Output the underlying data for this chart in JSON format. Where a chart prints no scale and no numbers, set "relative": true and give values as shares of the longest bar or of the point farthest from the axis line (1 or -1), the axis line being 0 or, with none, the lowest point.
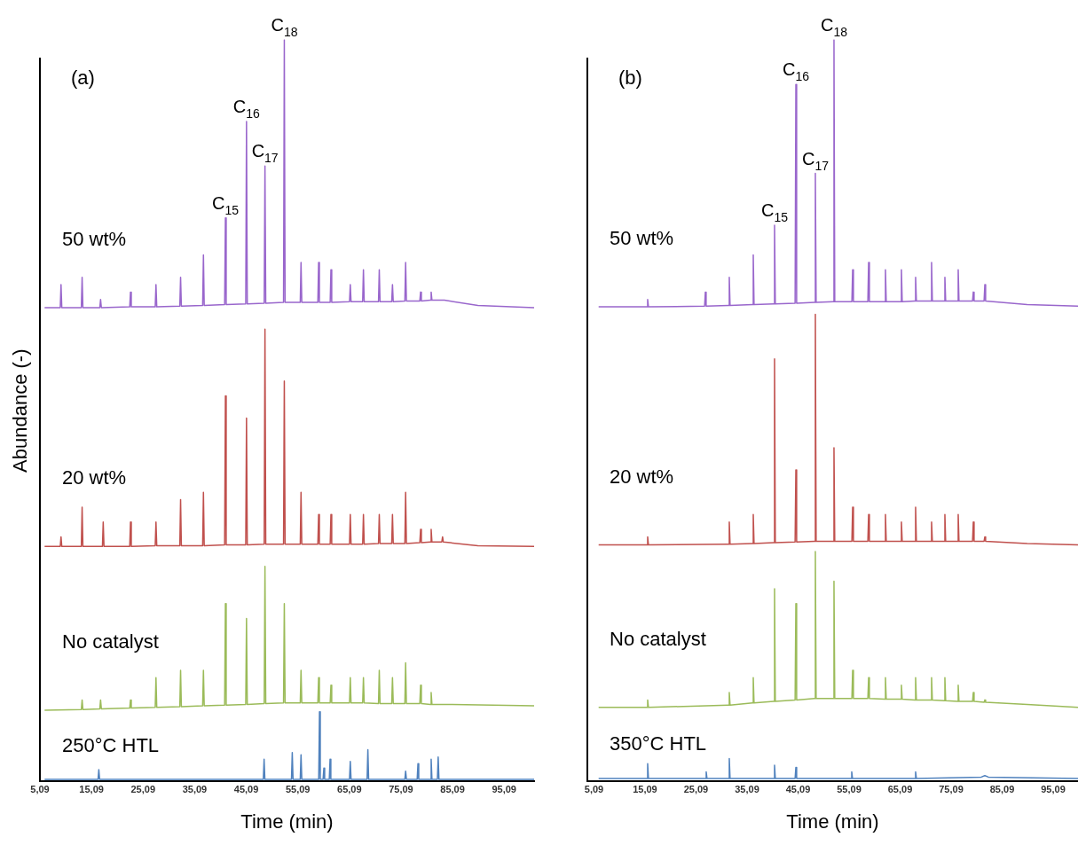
{
  "chart_data": [
    {
      "type": "line",
      "title": "(a)",
      "xlabel": "Time (min)",
      "ylabel": "Abundance (-)",
      "relative": true,
      "legend": false,
      "grid": false,
      "marker": "none",
      "tick_labels": "x",
      "xlim": [
        5.09,
        100.9
      ],
      "xticks": [
        {
          "value": 5.09,
          "label": "5,09"
        },
        {
          "value": 15.09,
          "label": "15,09"
        },
        {
          "value": 25.09,
          "label": "25,09"
        },
        {
          "value": 35.09,
          "label": "35,09"
        },
        {
          "value": 45.09,
          "label": "45,09"
        },
        {
          "value": 55.09,
          "label": "55,09"
        },
        {
          "value": 65.09,
          "label": "65,09"
        },
        {
          "value": 75.09,
          "label": "75,09"
        },
        {
          "value": 85.09,
          "label": "85,09"
        },
        {
          "value": 95.09,
          "label": "95,09"
        }
      ],
      "series": [
        {
          "name": "50 wt%",
          "color": "#9966cc",
          "x": [
            6,
            9.03,
            9.18,
            9.33,
            13.12,
            13.27,
            13.42,
            16.7,
            16.85,
            17.0,
            22.5,
            22.65,
            22.8,
            27.44,
            27.59,
            27.74,
            32.21,
            32.36,
            32.51,
            36.64,
            36.79,
            36.94,
            40.9,
            41.05,
            41.2,
            44.99,
            45.14,
            45.29,
            48.57,
            48.72,
            48.87,
            52.32,
            52.47,
            52.62,
            55.56,
            55.71,
            55.86,
            58.97,
            59.12,
            59.27,
            61.36,
            61.51,
            61.66,
            65.11,
            65.26,
            65.41,
            67.66,
            67.81,
            67.96,
            70.73,
            70.88,
            71.03,
            73.29,
            73.44,
            73.59,
            75.84,
            75.99,
            76.14,
            78.74,
            78.89,
            79.04,
            80.79,
            80.94,
            81.09,
            83.5,
            90,
            100.9
          ],
          "values": [
            0.639,
            0.639,
            0.67,
            0.639,
            0.639,
            0.68,
            0.639,
            0.639,
            0.65,
            0.639,
            0.64,
            0.66,
            0.64,
            0.64,
            0.67,
            0.64,
            0.641,
            0.68,
            0.641,
            0.642,
            0.71,
            0.642,
            0.643,
            0.76,
            0.643,
            0.644,
            0.89,
            0.644,
            0.645,
            0.83,
            0.645,
            0.646,
            1,
            0.646,
            0.646,
            0.7,
            0.646,
            0.646,
            0.7,
            0.646,
            0.646,
            0.69,
            0.646,
            0.647,
            0.67,
            0.647,
            0.647,
            0.69,
            0.647,
            0.647,
            0.69,
            0.647,
            0.647,
            0.67,
            0.647,
            0.648,
            0.7,
            0.648,
            0.648,
            0.66,
            0.648,
            0.649,
            0.66,
            0.649,
            0.649,
            0.642,
            0.639
          ]
        },
        {
          "name": "20 wt%",
          "color": "#c0504d",
          "x": [
            6,
            9.03,
            9.18,
            9.33,
            13.12,
            13.27,
            13.42,
            17.21,
            17.36,
            17.51,
            22.5,
            22.65,
            22.8,
            27.44,
            27.59,
            27.74,
            32.21,
            32.36,
            32.51,
            36.64,
            36.79,
            36.94,
            40.9,
            41.05,
            41.2,
            44.99,
            45.14,
            45.29,
            48.57,
            48.72,
            48.87,
            52.32,
            52.47,
            52.62,
            55.56,
            55.71,
            55.86,
            58.97,
            59.12,
            59.27,
            61.36,
            61.51,
            61.66,
            65.11,
            65.26,
            65.41,
            67.66,
            67.81,
            67.96,
            70.73,
            70.88,
            71.03,
            73.29,
            73.44,
            73.59,
            75.84,
            75.99,
            76.14,
            78.74,
            78.89,
            79.04,
            80.79,
            80.94,
            81.09,
            83.0,
            83.15,
            83.3,
            90,
            100.9
          ],
          "values": [
            0.317,
            0.317,
            0.33,
            0.317,
            0.317,
            0.37,
            0.317,
            0.317,
            0.35,
            0.317,
            0.317,
            0.35,
            0.317,
            0.318,
            0.35,
            0.318,
            0.318,
            0.38,
            0.318,
            0.318,
            0.39,
            0.318,
            0.319,
            0.52,
            0.319,
            0.319,
            0.49,
            0.319,
            0.32,
            0.61,
            0.32,
            0.32,
            0.54,
            0.32,
            0.32,
            0.39,
            0.32,
            0.32,
            0.36,
            0.32,
            0.32,
            0.36,
            0.32,
            0.32,
            0.36,
            0.32,
            0.32,
            0.36,
            0.32,
            0.321,
            0.36,
            0.321,
            0.321,
            0.36,
            0.321,
            0.321,
            0.39,
            0.321,
            0.322,
            0.34,
            0.322,
            0.323,
            0.34,
            0.323,
            0.323,
            0.33,
            0.323,
            0.318,
            0.317
          ]
        },
        {
          "name": "No catalyst",
          "color": "#9bbb59",
          "x": [
            6,
            13.12,
            13.27,
            13.42,
            16.7,
            16.85,
            17.0,
            22.5,
            22.65,
            22.8,
            27.44,
            27.59,
            27.74,
            32.21,
            32.36,
            32.51,
            36.64,
            36.79,
            36.94,
            40.9,
            41.05,
            41.2,
            44.99,
            45.14,
            45.29,
            48.57,
            48.72,
            48.87,
            52.32,
            52.47,
            52.62,
            55.56,
            55.71,
            55.86,
            58.97,
            59.12,
            59.27,
            61.36,
            61.51,
            61.66,
            65.11,
            65.26,
            65.41,
            67.66,
            67.81,
            67.96,
            70.73,
            70.88,
            71.03,
            73.29,
            73.44,
            73.59,
            75.84,
            75.99,
            76.14,
            78.74,
            78.89,
            79.04,
            80.79,
            80.94,
            81.09,
            85,
            100.9
          ],
          "values": [
            0.096,
            0.097,
            0.11,
            0.097,
            0.098,
            0.11,
            0.098,
            0.099,
            0.11,
            0.099,
            0.1,
            0.14,
            0.1,
            0.101,
            0.15,
            0.101,
            0.102,
            0.15,
            0.102,
            0.103,
            0.24,
            0.103,
            0.104,
            0.22,
            0.104,
            0.105,
            0.29,
            0.105,
            0.106,
            0.24,
            0.106,
            0.106,
            0.15,
            0.106,
            0.106,
            0.14,
            0.106,
            0.106,
            0.13,
            0.106,
            0.106,
            0.14,
            0.106,
            0.106,
            0.14,
            0.106,
            0.105,
            0.15,
            0.105,
            0.105,
            0.14,
            0.105,
            0.105,
            0.16,
            0.105,
            0.105,
            0.13,
            0.105,
            0.104,
            0.12,
            0.104,
            0.104,
            0.102
          ]
        },
        {
          "name": "250°C HTL",
          "color": "#4f81bd",
          "x": [
            6,
            16.36,
            16.51,
            16.66,
            48.4,
            48.55,
            48.7,
            53.86,
            54.01,
            54.16,
            55.56,
            55.71,
            55.86,
            59.14,
            59.29,
            59.44,
            59.99,
            60.14,
            60.29,
            61.19,
            61.34,
            61.49,
            65.11,
            65.26,
            65.41,
            68.52,
            68.67,
            68.82,
            75.84,
            75.99,
            76.14,
            78.23,
            78.38,
            78.53,
            80.79,
            80.94,
            81.09,
            82.15,
            82.3,
            82.45,
            100.9
          ],
          "values": [
            0.003,
            0.003,
            0.016,
            0.003,
            0.003,
            0.03,
            0.003,
            0.003,
            0.039,
            0.003,
            0.003,
            0.036,
            0.003,
            0.003,
            0.094,
            0.003,
            0.003,
            0.018,
            0.003,
            0.003,
            0.03,
            0.003,
            0.003,
            0.027,
            0.003,
            0.003,
            0.043,
            0.003,
            0.003,
            0.014,
            0.003,
            0.003,
            0.024,
            0.003,
            0.003,
            0.03,
            0.003,
            0.003,
            0.033,
            0.003,
            0.003
          ]
        }
      ],
      "annotations": [
        {
          "text": "C$_{15}$",
          "x": 41.05,
          "y": 0.76
        },
        {
          "text": "C$_{16}$",
          "x": 45.14,
          "y": 0.89
        },
        {
          "text": "C$_{17}$",
          "x": 48.72,
          "y": 0.83
        },
        {
          "text": "C$_{18}$",
          "x": 52.47,
          "y": 1
        }
      ]
    },
    {
      "type": "line",
      "title": "(b)",
      "xlabel": "Time (min)",
      "relative": true,
      "legend": false,
      "grid": false,
      "marker": "none",
      "tick_labels": "x",
      "xlim": [
        3.79,
        99.96
      ],
      "xticks": [
        {
          "value": 5.09,
          "label": "5,09"
        },
        {
          "value": 15.09,
          "label": "15,09"
        },
        {
          "value": 25.09,
          "label": "25,09"
        },
        {
          "value": 35.09,
          "label": "35,09"
        },
        {
          "value": 45.09,
          "label": "45,09"
        },
        {
          "value": 55.09,
          "label": "55,09"
        },
        {
          "value": 65.09,
          "label": "65,09"
        },
        {
          "value": 75.09,
          "label": "75,09"
        },
        {
          "value": 85.09,
          "label": "85,09"
        },
        {
          "value": 95.09,
          "label": "95,09"
        }
      ],
      "series": [
        {
          "name": "50 wt%",
          "color": "#9966cc",
          "x": [
            6,
            15.46,
            15.61,
            15.76,
            26.77,
            26.92,
            27.07,
            31.46,
            31.61,
            31.76,
            36.16,
            36.31,
            36.46,
            40.33,
            40.48,
            40.63,
            44.51,
            44.66,
            44.81,
            48.33,
            48.48,
            48.63,
            51.98,
            52.13,
            52.28,
            55.64,
            55.79,
            55.94,
            58.77,
            58.92,
            59.07,
            62.07,
            62.22,
            62.37,
            65.2,
            65.35,
            65.5,
            67.98,
            68.13,
            68.28,
            71.11,
            71.26,
            71.41,
            73.72,
            73.87,
            74.02,
            76.33,
            76.48,
            76.63,
            79.29,
            79.44,
            79.59,
            81.55,
            81.7,
            81.85,
            90,
            99.96
          ],
          "values": [
            0.64,
            0.64,
            0.65,
            0.64,
            0.641,
            0.66,
            0.641,
            0.642,
            0.68,
            0.642,
            0.643,
            0.71,
            0.643,
            0.644,
            0.75,
            0.644,
            0.645,
            0.94,
            0.645,
            0.646,
            0.82,
            0.646,
            0.647,
            1,
            0.647,
            0.647,
            0.69,
            0.647,
            0.647,
            0.7,
            0.647,
            0.647,
            0.69,
            0.647,
            0.647,
            0.69,
            0.647,
            0.648,
            0.68,
            0.648,
            0.648,
            0.7,
            0.648,
            0.648,
            0.68,
            0.648,
            0.648,
            0.69,
            0.648,
            0.648,
            0.66,
            0.648,
            0.648,
            0.67,
            0.648,
            0.643,
            0.641
          ]
        },
        {
          "name": "20 wt%",
          "color": "#c0504d",
          "x": [
            6,
            15.46,
            15.61,
            15.76,
            31.46,
            31.61,
            31.76,
            36.16,
            36.31,
            36.46,
            40.33,
            40.48,
            40.63,
            44.51,
            44.66,
            44.81,
            48.33,
            48.48,
            48.63,
            51.98,
            52.13,
            52.28,
            55.64,
            55.79,
            55.94,
            58.77,
            58.92,
            59.07,
            62.07,
            62.22,
            62.37,
            65.2,
            65.35,
            65.5,
            67.98,
            68.13,
            68.28,
            71.11,
            71.26,
            71.41,
            73.72,
            73.87,
            74.02,
            76.33,
            76.48,
            76.63,
            79.29,
            79.44,
            79.59,
            81.55,
            81.7,
            81.85,
            90,
            99.96
          ],
          "values": [
            0.319,
            0.319,
            0.33,
            0.319,
            0.32,
            0.35,
            0.32,
            0.321,
            0.36,
            0.321,
            0.322,
            0.57,
            0.322,
            0.323,
            0.42,
            0.323,
            0.324,
            0.63,
            0.324,
            0.324,
            0.45,
            0.324,
            0.324,
            0.37,
            0.324,
            0.324,
            0.36,
            0.324,
            0.324,
            0.36,
            0.324,
            0.324,
            0.35,
            0.324,
            0.324,
            0.37,
            0.324,
            0.324,
            0.35,
            0.324,
            0.324,
            0.36,
            0.324,
            0.324,
            0.36,
            0.324,
            0.324,
            0.35,
            0.324,
            0.324,
            0.33,
            0.324,
            0.321,
            0.319
          ]
        },
        {
          "name": "No catalyst",
          "color": "#9bbb59",
          "x": [
            6,
            15.46,
            15.61,
            15.76,
            31.46,
            31.61,
            31.76,
            36.16,
            36.31,
            36.46,
            40.33,
            40.48,
            40.63,
            44.51,
            44.66,
            44.81,
            48.33,
            48.48,
            48.63,
            51.98,
            52.13,
            52.28,
            55.64,
            55.79,
            55.94,
            58.77,
            58.92,
            59.07,
            62.07,
            62.22,
            62.37,
            65.2,
            65.35,
            65.5,
            67.98,
            68.13,
            68.28,
            71.11,
            71.26,
            71.41,
            73.72,
            73.87,
            74.02,
            76.33,
            76.48,
            76.63,
            79.29,
            79.44,
            79.59,
            81.55,
            81.7,
            81.85,
            90,
            99.96
          ],
          "values": [
            0.1,
            0.1,
            0.11,
            0.1,
            0.103,
            0.12,
            0.103,
            0.106,
            0.14,
            0.106,
            0.108,
            0.26,
            0.108,
            0.11,
            0.24,
            0.11,
            0.112,
            0.31,
            0.112,
            0.112,
            0.27,
            0.112,
            0.112,
            0.15,
            0.112,
            0.112,
            0.14,
            0.112,
            0.111,
            0.14,
            0.111,
            0.111,
            0.13,
            0.111,
            0.11,
            0.14,
            0.11,
            0.11,
            0.14,
            0.11,
            0.109,
            0.14,
            0.109,
            0.108,
            0.13,
            0.108,
            0.108,
            0.12,
            0.108,
            0.107,
            0.11,
            0.107,
            0.104,
            0.1
          ]
        },
        {
          "name": "350°C HTL",
          "color": "#4f81bd",
          "x": [
            6,
            15.46,
            15.61,
            15.76,
            26.94,
            27.09,
            27.24,
            31.46,
            31.61,
            31.76,
            40.33,
            40.48,
            40.63,
            44.51,
            44.66,
            44.81,
            55.46,
            55.61,
            55.76,
            67.98,
            68.13,
            68.28,
            81.0,
            81.7,
            82.4,
            99.96
          ],
          "values": [
            0.004,
            0.004,
            0.024,
            0.004,
            0.004,
            0.013,
            0.004,
            0.004,
            0.031,
            0.004,
            0.004,
            0.022,
            0.004,
            0.004,
            0.019,
            0.004,
            0.004,
            0.013,
            0.004,
            0.004,
            0.013,
            0.004,
            0.006,
            0.008,
            0.006,
            0.004
          ]
        }
      ],
      "annotations": [
        {
          "text": "C$_{15}$",
          "x": 40.48,
          "y": 0.75
        },
        {
          "text": "C$_{16}$",
          "x": 44.66,
          "y": 0.94
        },
        {
          "text": "C$_{17}$",
          "x": 48.48,
          "y": 0.82
        },
        {
          "text": "C$_{18}$",
          "x": 52.13,
          "y": 1
        }
      ]
    }
  ]
}
